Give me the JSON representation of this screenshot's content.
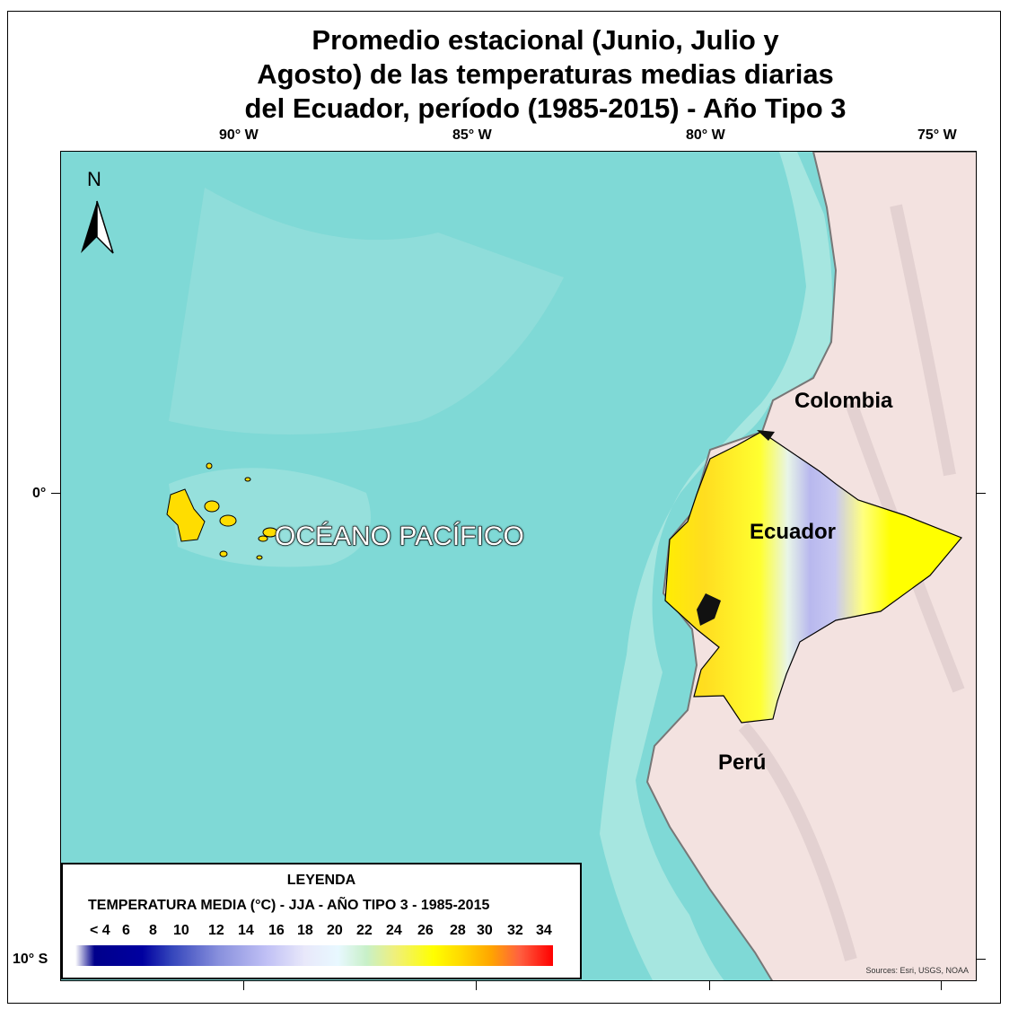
{
  "title": [
    "Promedio estacional (Junio, Julio y",
    "Agosto) de las temperaturas medias diarias",
    "del Ecuador, período (1985-2015) - Año Tipo 3"
  ],
  "graticule": {
    "longitudes": [
      "90° W",
      "85° W",
      "80° W",
      "75° W"
    ],
    "latitudes": [
      "0°",
      "10° S"
    ]
  },
  "north_arrow": {
    "label": "N",
    "icon": "north-arrow-icon"
  },
  "labels": {
    "ocean": "OCÉANO PACÍFICO",
    "colombia": "Colombia",
    "ecuador": "Ecuador",
    "peru": "Perú"
  },
  "legend": {
    "title": "LEYENDA",
    "subtitle": "TEMPERATURA MEDIA (°C) - JJA - AÑO TIPO 3 - 1985-2015",
    "ticks": [
      "< 4",
      "6",
      "8",
      "10",
      "12",
      "14",
      "16",
      "18",
      "20",
      "22",
      "24",
      "26",
      "28",
      "30",
      "32",
      "34"
    ],
    "colors": {
      "low": "#00008b",
      "mid_low": "#c0c0f5",
      "mid": "#e8f8ff",
      "mid_high": "#ffff00",
      "high": "#ff0000"
    }
  },
  "sources": "Sources: Esri, USGS, NOAA",
  "colors": {
    "ocean": "#7fd9d6",
    "land": "#f3e2e0",
    "ecuador_warm": "#ffff00",
    "ecuador_cold": "#b8b8ee"
  }
}
